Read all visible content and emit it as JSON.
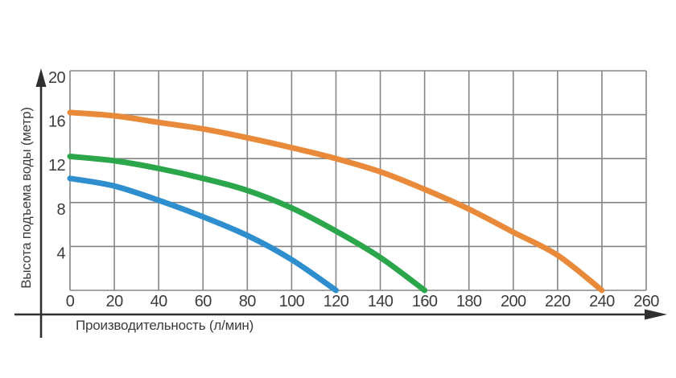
{
  "chart_data": {
    "type": "line",
    "title": "",
    "xlabel": "Производительность (л/мин)",
    "ylabel": "Высота подъема воды (метр)",
    "xlim": [
      0,
      260
    ],
    "ylim": [
      0,
      20
    ],
    "x_ticks": [
      0,
      20,
      40,
      60,
      80,
      100,
      120,
      140,
      160,
      180,
      200,
      220,
      240,
      260
    ],
    "y_ticks": [
      4,
      8,
      12,
      16,
      20
    ],
    "y_gridlines": [
      0,
      4,
      8,
      12,
      16,
      20
    ],
    "grid": true,
    "legend_position": "none",
    "series": [
      {
        "name": "orange-curve-head-16m",
        "color": "#E98A3A",
        "points": [
          [
            0,
            16.2
          ],
          [
            20,
            15.9
          ],
          [
            40,
            15.3
          ],
          [
            60,
            14.7
          ],
          [
            80,
            13.9
          ],
          [
            100,
            13.0
          ],
          [
            120,
            12.0
          ],
          [
            140,
            10.8
          ],
          [
            160,
            9.2
          ],
          [
            180,
            7.4
          ],
          [
            200,
            5.3
          ],
          [
            220,
            3.2
          ],
          [
            240,
            0
          ]
        ]
      },
      {
        "name": "green-curve-head-12m",
        "color": "#2BA64B",
        "points": [
          [
            0,
            12.2
          ],
          [
            20,
            11.8
          ],
          [
            40,
            11.1
          ],
          [
            60,
            10.2
          ],
          [
            80,
            9.1
          ],
          [
            100,
            7.5
          ],
          [
            120,
            5.4
          ],
          [
            140,
            3.0
          ],
          [
            160,
            0
          ]
        ]
      },
      {
        "name": "blue-curve-head-10m",
        "color": "#2E8ECE",
        "points": [
          [
            0,
            10.2
          ],
          [
            20,
            9.5
          ],
          [
            40,
            8.2
          ],
          [
            60,
            6.7
          ],
          [
            80,
            5.0
          ],
          [
            100,
            2.8
          ],
          [
            120,
            0
          ]
        ]
      }
    ]
  },
  "colors": {
    "background": "#ffffff",
    "grid": "#858585",
    "axis": "#2f2f2f",
    "text": "#3c3c3c",
    "orange_curve": "#E98A3A",
    "green_curve": "#2BA64B",
    "blue_curve": "#2E8ECE"
  }
}
